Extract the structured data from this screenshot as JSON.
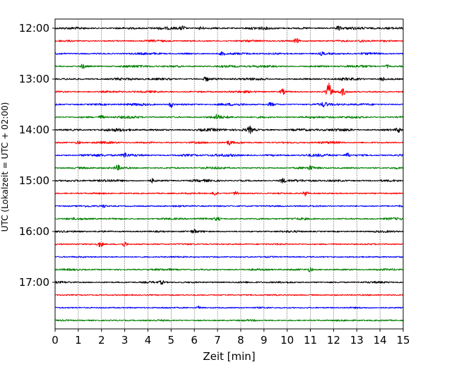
{
  "chart_data": {
    "type": "line",
    "title": "",
    "xlabel": "Zeit  [min]",
    "ylabel": "UTC (Lokalzeit = UTC + 02:00)",
    "xlim": [
      0,
      15
    ],
    "x_ticks": [
      "0",
      "1",
      "2",
      "3",
      "4",
      "5",
      "6",
      "7",
      "8",
      "9",
      "10",
      "11",
      "12",
      "13",
      "14",
      "15"
    ],
    "y_tick_labels": [
      "12:00",
      "13:00",
      "14:00",
      "15:00",
      "16:00",
      "17:00"
    ],
    "grid": "vertical dotted",
    "colors": [
      "#000000",
      "#ff0000",
      "#0000ff",
      "#007f00"
    ],
    "trace_interval_minutes": 15,
    "traces": [
      {
        "start": "12:00",
        "color": "#000000",
        "noise": 2.2,
        "events": [
          {
            "t": 5.5,
            "a": 3
          },
          {
            "t": 12.2,
            "a": 3
          },
          {
            "t": 6.3,
            "a": 2.5
          }
        ]
      },
      {
        "start": "12:15",
        "color": "#ff0000",
        "noise": 1.6,
        "events": [
          {
            "t": 10.4,
            "a": 3
          },
          {
            "t": 13.2,
            "a": 2
          }
        ]
      },
      {
        "start": "12:30",
        "color": "#0000ff",
        "noise": 1.8,
        "events": [
          {
            "t": 7.2,
            "a": 2.5
          },
          {
            "t": 11.5,
            "a": 2
          }
        ]
      },
      {
        "start": "12:45",
        "color": "#007f00",
        "noise": 2.0,
        "events": [
          {
            "t": 1.2,
            "a": 2.5
          },
          {
            "t": 14.3,
            "a": 2
          }
        ]
      },
      {
        "start": "13:00",
        "color": "#000000",
        "noise": 2.0,
        "events": [
          {
            "t": 6.5,
            "a": 2.5
          },
          {
            "t": 14.1,
            "a": 2.5
          }
        ]
      },
      {
        "start": "13:15",
        "color": "#ff0000",
        "noise": 1.8,
        "events": [
          {
            "t": 9.8,
            "a": 3.5
          },
          {
            "t": 11.8,
            "a": 11
          },
          {
            "t": 12.4,
            "a": 4
          }
        ]
      },
      {
        "start": "13:30",
        "color": "#0000ff",
        "noise": 2.0,
        "events": [
          {
            "t": 5.0,
            "a": 4
          },
          {
            "t": 9.3,
            "a": 2.5
          },
          {
            "t": 11.6,
            "a": 2.5
          }
        ]
      },
      {
        "start": "13:45",
        "color": "#007f00",
        "noise": 2.0,
        "events": [
          {
            "t": 2.0,
            "a": 2.5
          },
          {
            "t": 7.0,
            "a": 3
          }
        ]
      },
      {
        "start": "14:00",
        "color": "#000000",
        "noise": 2.4,
        "events": [
          {
            "t": 8.4,
            "a": 4
          },
          {
            "t": 14.8,
            "a": 3
          }
        ]
      },
      {
        "start": "14:15",
        "color": "#ff0000",
        "noise": 1.8,
        "events": [
          {
            "t": 1.0,
            "a": 2.5
          },
          {
            "t": 7.5,
            "a": 2.5
          }
        ]
      },
      {
        "start": "14:30",
        "color": "#0000ff",
        "noise": 2.2,
        "events": [
          {
            "t": 3.0,
            "a": 3
          },
          {
            "t": 12.6,
            "a": 3
          }
        ]
      },
      {
        "start": "14:45",
        "color": "#007f00",
        "noise": 1.8,
        "events": [
          {
            "t": 2.7,
            "a": 3
          },
          {
            "t": 11.0,
            "a": 2
          }
        ]
      },
      {
        "start": "15:00",
        "color": "#000000",
        "noise": 2.0,
        "events": [
          {
            "t": 9.8,
            "a": 3
          },
          {
            "t": 4.2,
            "a": 2.5
          }
        ]
      },
      {
        "start": "15:15",
        "color": "#ff0000",
        "noise": 1.2,
        "events": [
          {
            "t": 6.9,
            "a": 3.5
          },
          {
            "t": 7.8,
            "a": 3
          },
          {
            "t": 10.8,
            "a": 3.5
          }
        ]
      },
      {
        "start": "15:30",
        "color": "#0000ff",
        "noise": 1.4,
        "events": [
          {
            "t": 2.1,
            "a": 2
          }
        ]
      },
      {
        "start": "15:45",
        "color": "#007f00",
        "noise": 1.8,
        "events": [
          {
            "t": 7.0,
            "a": 2
          }
        ]
      },
      {
        "start": "16:00",
        "color": "#000000",
        "noise": 1.6,
        "events": [
          {
            "t": 6.0,
            "a": 2
          }
        ]
      },
      {
        "start": "16:15",
        "color": "#ff0000",
        "noise": 1.2,
        "events": [
          {
            "t": 1.95,
            "a": 3.5
          },
          {
            "t": 3.0,
            "a": 4
          }
        ]
      },
      {
        "start": "16:30",
        "color": "#0000ff",
        "noise": 1.2,
        "events": []
      },
      {
        "start": "16:45",
        "color": "#007f00",
        "noise": 1.6,
        "events": [
          {
            "t": 11.0,
            "a": 3
          }
        ]
      },
      {
        "start": "17:00",
        "color": "#000000",
        "noise": 1.6,
        "events": [
          {
            "t": 4.6,
            "a": 2
          }
        ]
      },
      {
        "start": "17:15",
        "color": "#ff0000",
        "noise": 1.0,
        "events": []
      },
      {
        "start": "17:30",
        "color": "#0000ff",
        "noise": 1.2,
        "events": [
          {
            "t": 6.2,
            "a": 2.5
          }
        ]
      },
      {
        "start": "17:45",
        "color": "#007f00",
        "noise": 1.4,
        "events": []
      }
    ]
  }
}
